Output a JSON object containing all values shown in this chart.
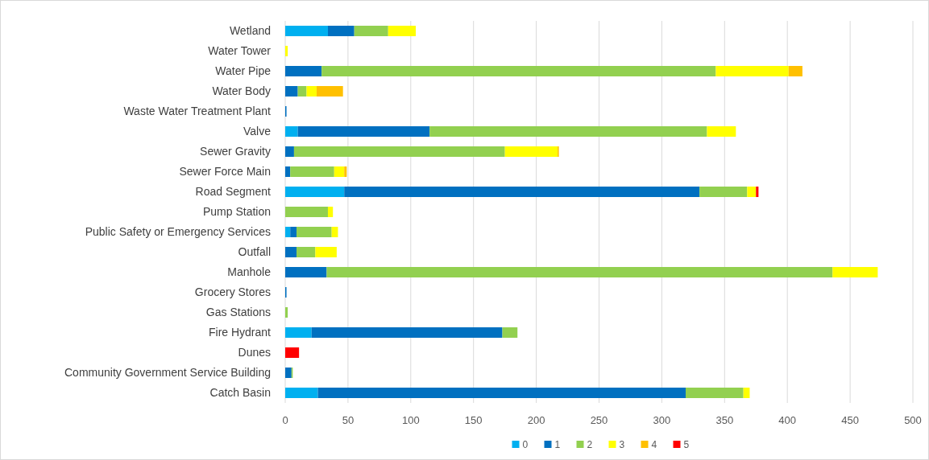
{
  "chart_data": {
    "type": "bar",
    "orientation": "horizontal",
    "stacked": true,
    "categories": [
      "Wetland",
      "Water Tower",
      "Water Pipe",
      "Water Body",
      "Waste Water Treatment Plant",
      "Valve",
      "Sewer Gravity",
      "Sewer Force Main",
      "Road Segment",
      "Pump Station",
      "Public Safety or Emergency Services",
      "Outfall",
      "Manhole",
      "Grocery Stores",
      "Gas Stations",
      "Fire Hydrant",
      "Dunes",
      "Community Government Service Building",
      "Catch Basin"
    ],
    "series": [
      {
        "name": "0",
        "color": "#00b0f0",
        "values": [
          34,
          null,
          null,
          null,
          null,
          10,
          null,
          null,
          47,
          null,
          4,
          null,
          null,
          null,
          null,
          21,
          null,
          null,
          26
        ]
      },
      {
        "name": "1",
        "color": "#0070c0",
        "values": [
          21,
          null,
          29,
          10,
          1,
          105,
          7,
          4,
          283,
          null,
          5,
          9,
          33,
          1,
          null,
          152,
          null,
          5,
          293
        ]
      },
      {
        "name": "2",
        "color": "#92d050",
        "values": [
          27,
          null,
          314,
          7,
          null,
          221,
          168,
          35,
          38,
          34,
          28,
          15,
          403,
          null,
          2,
          12,
          null,
          1,
          46
        ]
      },
      {
        "name": "3",
        "color": "#ffff00",
        "values": [
          22,
          2,
          58,
          8,
          null,
          23,
          42,
          8,
          7,
          4,
          5,
          17,
          36,
          null,
          null,
          null,
          null,
          null,
          5
        ]
      },
      {
        "name": "4",
        "color": "#ffc000",
        "values": [
          null,
          null,
          11,
          21,
          null,
          null,
          1,
          2,
          null,
          null,
          null,
          null,
          null,
          null,
          null,
          null,
          null,
          null,
          null
        ]
      },
      {
        "name": "5",
        "color": "#ff0000",
        "values": [
          null,
          null,
          null,
          null,
          null,
          null,
          null,
          null,
          2,
          null,
          null,
          null,
          null,
          null,
          null,
          null,
          11,
          null,
          null
        ]
      }
    ],
    "xlim": [
      0,
      500
    ],
    "xticks": [
      0,
      50,
      100,
      150,
      200,
      250,
      300,
      350,
      400,
      450,
      500
    ],
    "grid": "x",
    "legend": "bottom"
  }
}
